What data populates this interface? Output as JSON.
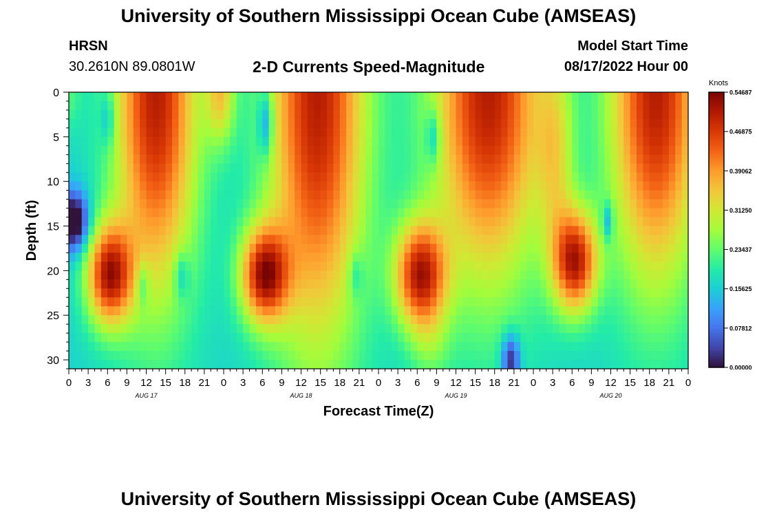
{
  "header": {
    "title": "University of Southern Mississippi Ocean Cube (AMSEAS)",
    "station": "HRSN",
    "coordinates": "30.2610N  89.0801W",
    "subtitle": "2-D Currents Speed-Magnitude",
    "start_label": "Model Start Time",
    "start_value": "08/17/2022 Hour 00"
  },
  "footer": {
    "title": "University of Southern Mississippi Ocean Cube (AMSEAS)"
  },
  "chart_data": {
    "type": "heatmap",
    "title": "2-D Currents Speed-Magnitude",
    "xlabel": "Forecast Time(Z)",
    "ylabel": "Depth (ft)",
    "x_range_hours": [
      0,
      96
    ],
    "ylim": [
      0,
      31
    ],
    "y_inverted": true,
    "x_tick_hours": [
      0,
      3,
      6,
      9,
      12,
      15,
      18,
      21,
      24,
      27,
      30,
      33,
      36,
      39,
      42,
      45,
      48,
      51,
      54,
      57,
      60,
      63,
      66,
      69,
      72,
      75,
      78,
      81,
      84,
      87,
      90,
      93,
      96
    ],
    "x_tick_labels": [
      "0",
      "3",
      "6",
      "9",
      "12",
      "15",
      "18",
      "21",
      "0",
      "3",
      "6",
      "9",
      "12",
      "15",
      "18",
      "21",
      "0",
      "3",
      "6",
      "9",
      "12",
      "15",
      "18",
      "21",
      "0",
      "3",
      "6",
      "9",
      "12",
      "15",
      "18",
      "21",
      "0"
    ],
    "day_labels": [
      {
        "hour": 12,
        "label": "AUG 17"
      },
      {
        "hour": 36,
        "label": "AUG 18"
      },
      {
        "hour": 60,
        "label": "AUG 19"
      },
      {
        "hour": 84,
        "label": "AUG 20"
      }
    ],
    "y_ticks": [
      0,
      5,
      10,
      15,
      20,
      25,
      30
    ],
    "y_tick_labels": [
      "0",
      "5",
      "10",
      "15",
      "20",
      "25",
      "30"
    ],
    "colorbar": {
      "label": "Knots",
      "range": [
        0,
        0.5469
      ],
      "tick_values": [
        0.0,
        0.07812,
        0.15625,
        0.23437,
        0.3125,
        0.39062,
        0.46875,
        0.54687
      ],
      "tick_labels": [
        "0.00000",
        "0.07812",
        "0.15625",
        "0.23437",
        "0.31250",
        "0.39062",
        "0.46875",
        "0.54687"
      ],
      "colors": [
        "#30123b",
        "#4145ab",
        "#4675ed",
        "#39a2fc",
        "#1bcfd4",
        "#24eca6",
        "#61fc6c",
        "#a4fc3b",
        "#d1e834",
        "#f3c63a",
        "#fe9b2d",
        "#f36315",
        "#d93806",
        "#b11901",
        "#7a0403"
      ]
    },
    "features": [
      {
        "t": 0,
        "d": 0,
        "st": 1.4,
        "sd": 3.0,
        "v": 0.1
      },
      {
        "t": 0.8,
        "d": 14.5,
        "st": 1.6,
        "sd": 2.3,
        "v": -0.42
      },
      {
        "t": 6,
        "d": 3.0,
        "st": 0.8,
        "sd": 2.2,
        "v": -0.14
      },
      {
        "t": 6.3,
        "d": 20.5,
        "st": 2.5,
        "sd": 4.0,
        "v": 0.6
      },
      {
        "t": 13.5,
        "d": 0,
        "st": 4.5,
        "sd": 16.0,
        "v": 0.62
      },
      {
        "t": 11.5,
        "d": 21.5,
        "st": 0.7,
        "sd": 1.8,
        "v": -0.15
      },
      {
        "t": 17.5,
        "d": 20.5,
        "st": 0.8,
        "sd": 1.8,
        "v": -0.15
      },
      {
        "t": 23.5,
        "d": 0,
        "st": 1.6,
        "sd": 4.0,
        "v": 0.3
      },
      {
        "t": 30.5,
        "d": 3.5,
        "st": 0.8,
        "sd": 2.6,
        "v": -0.24
      },
      {
        "t": 30.3,
        "d": 20.5,
        "st": 2.6,
        "sd": 3.8,
        "v": 0.6
      },
      {
        "t": 38.5,
        "d": 0,
        "st": 5.3,
        "sd": 20.0,
        "v": 0.62
      },
      {
        "t": 44.5,
        "d": 20.5,
        "st": 0.8,
        "sd": 1.8,
        "v": -0.12
      },
      {
        "t": 54.5,
        "d": 20.5,
        "st": 2.8,
        "sd": 4.2,
        "v": 0.6
      },
      {
        "t": 56.0,
        "d": 28.5,
        "st": 2.2,
        "sd": 3.5,
        "v": 0.1
      },
      {
        "t": 56.5,
        "d": 5.0,
        "st": 0.8,
        "sd": 2.2,
        "v": -0.18
      },
      {
        "t": 65.0,
        "d": 0,
        "st": 6.0,
        "sd": 15.0,
        "v": 0.62
      },
      {
        "t": 68.5,
        "d": 30.0,
        "st": 1.0,
        "sd": 2.0,
        "v": -0.32
      },
      {
        "t": 75.5,
        "d": 7.0,
        "st": 2.0,
        "sd": 8.0,
        "v": 0.22
      },
      {
        "t": 78.5,
        "d": 19.0,
        "st": 2.4,
        "sd": 4.0,
        "v": 0.6
      },
      {
        "t": 83.5,
        "d": 14.5,
        "st": 0.6,
        "sd": 1.5,
        "v": -0.2
      },
      {
        "t": 91.0,
        "d": 0,
        "st": 5.0,
        "sd": 15.0,
        "v": 0.62
      }
    ]
  }
}
